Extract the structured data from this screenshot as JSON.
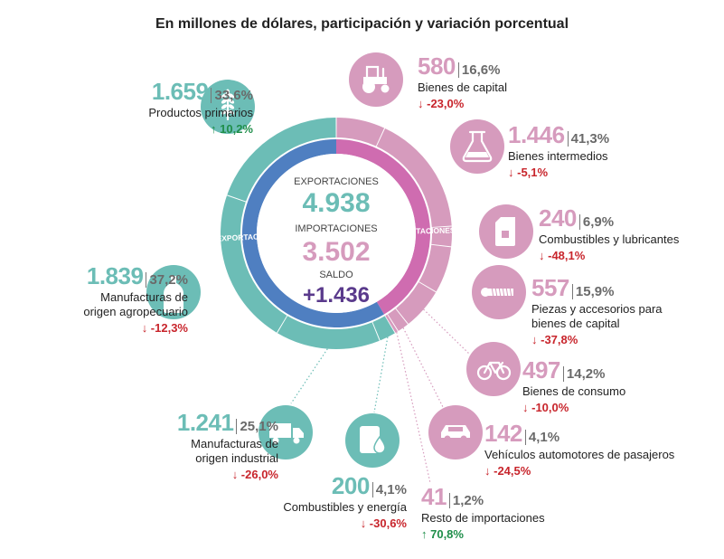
{
  "title": "En millones de dólares, participación y variación porcentual",
  "colors": {
    "exports": "#6cbdb6",
    "imports": "#d69bbd",
    "exports_inner": "#4f7fc1",
    "imports_inner": "#cf6cb0",
    "up": "#1f8e4a",
    "down": "#c8252c"
  },
  "chart_data": {
    "type": "pie",
    "title": "En millones de dólares, participación y variación porcentual",
    "center": {
      "exports_label": "EXPORTACIONES",
      "exports_value": "4.938",
      "imports_label": "IMPORTACIONES",
      "imports_value": "3.502",
      "balance_label": "SALDO",
      "balance_value": "+1.436"
    },
    "ring_labels": {
      "exports": "EXPORTACIONES",
      "imports": "IMPORTACIONES"
    },
    "exports": [
      {
        "label": "Productos primarios",
        "value": "1.659",
        "share": "33,6%",
        "change": "10,2%",
        "direction": "up",
        "icon": "wheat-icon"
      },
      {
        "label": "Manufacturas de origen agropecuario",
        "label_lines": [
          "Manufacturas de",
          "origen agropecuario"
        ],
        "value": "1.839",
        "share": "37,2%",
        "change": "-12,3%",
        "direction": "down",
        "icon": "bottle-icon"
      },
      {
        "label": "Manufacturas de origen industrial",
        "label_lines": [
          "Manufacturas de",
          "origen industrial"
        ],
        "value": "1.241",
        "share": "25,1%",
        "change": "-26,0%",
        "direction": "down",
        "icon": "truck-icon"
      },
      {
        "label": "Combustibles y energía",
        "value": "200",
        "share": "4,1%",
        "change": "-30,6%",
        "direction": "down",
        "icon": "fuel-barrel-icon"
      }
    ],
    "imports": [
      {
        "label": "Bienes de capital",
        "value": "580",
        "share": "16,6%",
        "change": "-23,0%",
        "direction": "down",
        "icon": "tractor-icon"
      },
      {
        "label": "Bienes intermedios",
        "value": "1.446",
        "share": "41,3%",
        "change": "-5,1%",
        "direction": "down",
        "icon": "flask-icon"
      },
      {
        "label": "Combustibles y lubricantes",
        "value": "240",
        "share": "6,9%",
        "change": "-48,1%",
        "direction": "down",
        "icon": "jerrycan-icon"
      },
      {
        "label": "Piezas y accesorios para bienes de capital",
        "label_lines": [
          "Piezas y accesorios para",
          "bienes de capital"
        ],
        "value": "557",
        "share": "15,9%",
        "change": "-37,8%",
        "direction": "down",
        "icon": "bolt-icon"
      },
      {
        "label": "Bienes de consumo",
        "value": "497",
        "share": "14,2%",
        "change": "-10,0%",
        "direction": "down",
        "icon": "bicycle-icon"
      },
      {
        "label": "Vehículos automotores de pasajeros",
        "value": "142",
        "share": "4,1%",
        "change": "-24,5%",
        "direction": "down",
        "icon": "car-icon"
      },
      {
        "label": "Resto de importaciones",
        "value": "41",
        "share": "1,2%",
        "change": "70,8%",
        "direction": "up",
        "icon": ""
      }
    ]
  }
}
